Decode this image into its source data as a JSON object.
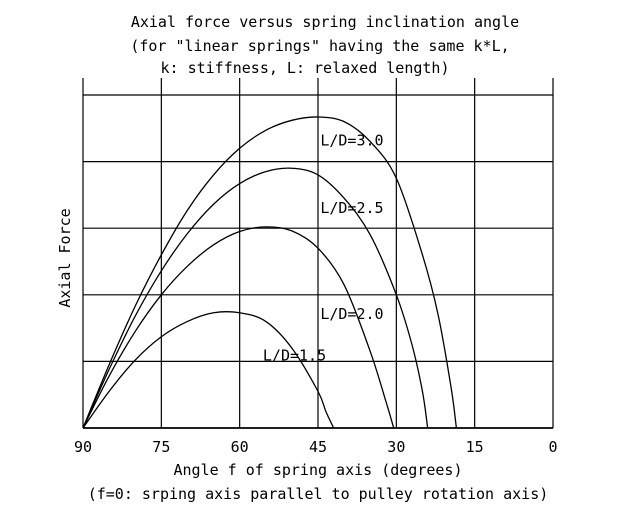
{
  "chart_data": {
    "type": "line",
    "title": "Axial force versus spring inclination angle",
    "subtitle_lines": [
      "(for \"linear springs\" having the same k*L,",
      "k: stiffness, L: relaxed length)"
    ],
    "xlabel": "Angle f of spring axis (degrees)",
    "xlabel_note": "(f=0: srping axis parallel to pulley rotation axis)",
    "ylabel": "Axial Force",
    "x_reversed": true,
    "xlim": [
      90,
      0
    ],
    "x_ticks": [
      90,
      75,
      60,
      45,
      30,
      15,
      0
    ],
    "x_tick_labels": [
      "90",
      "75",
      "60",
      "45",
      "30",
      "15",
      "0"
    ],
    "ylim": [
      0,
      5
    ],
    "grid": true,
    "series": [
      {
        "name": "L/D=3.0",
        "x": [
          90,
          85,
          80,
          75,
          70,
          65,
          60,
          55,
          50,
          45,
          40,
          35,
          30,
          25,
          22,
          19.5,
          18.5
        ],
        "y": [
          0,
          0.95,
          1.83,
          2.6,
          3.27,
          3.8,
          4.2,
          4.47,
          4.62,
          4.67,
          4.6,
          4.3,
          3.75,
          2.6,
          1.7,
          0.6,
          0
        ]
      },
      {
        "name": "L/D=2.5",
        "x": [
          90,
          85,
          80,
          75,
          70,
          65,
          60,
          55,
          50,
          45,
          40,
          35,
          30,
          27,
          25,
          24
        ],
        "y": [
          0,
          0.88,
          1.68,
          2.36,
          2.92,
          3.36,
          3.67,
          3.85,
          3.9,
          3.8,
          3.45,
          2.9,
          2.0,
          1.25,
          0.55,
          0
        ]
      },
      {
        "name": "L/D=2.0",
        "x": [
          90,
          85,
          80,
          75,
          70,
          65,
          60,
          55,
          50,
          45,
          40,
          35,
          32,
          30.5
        ],
        "y": [
          0,
          0.78,
          1.45,
          2.0,
          2.43,
          2.75,
          2.95,
          3.02,
          2.96,
          2.7,
          2.15,
          1.15,
          0.4,
          0
        ]
      },
      {
        "name": "L/D=1.5",
        "x": [
          90,
          85,
          80,
          75,
          70,
          65,
          60,
          55,
          50,
          45,
          43.5,
          42
        ],
        "y": [
          0,
          0.55,
          1.02,
          1.37,
          1.6,
          1.73,
          1.73,
          1.6,
          1.2,
          0.55,
          0.25,
          0
        ]
      }
    ],
    "series_label_anchor_x": [
      38.5,
      38.5,
      38.5,
      49.5
    ]
  }
}
